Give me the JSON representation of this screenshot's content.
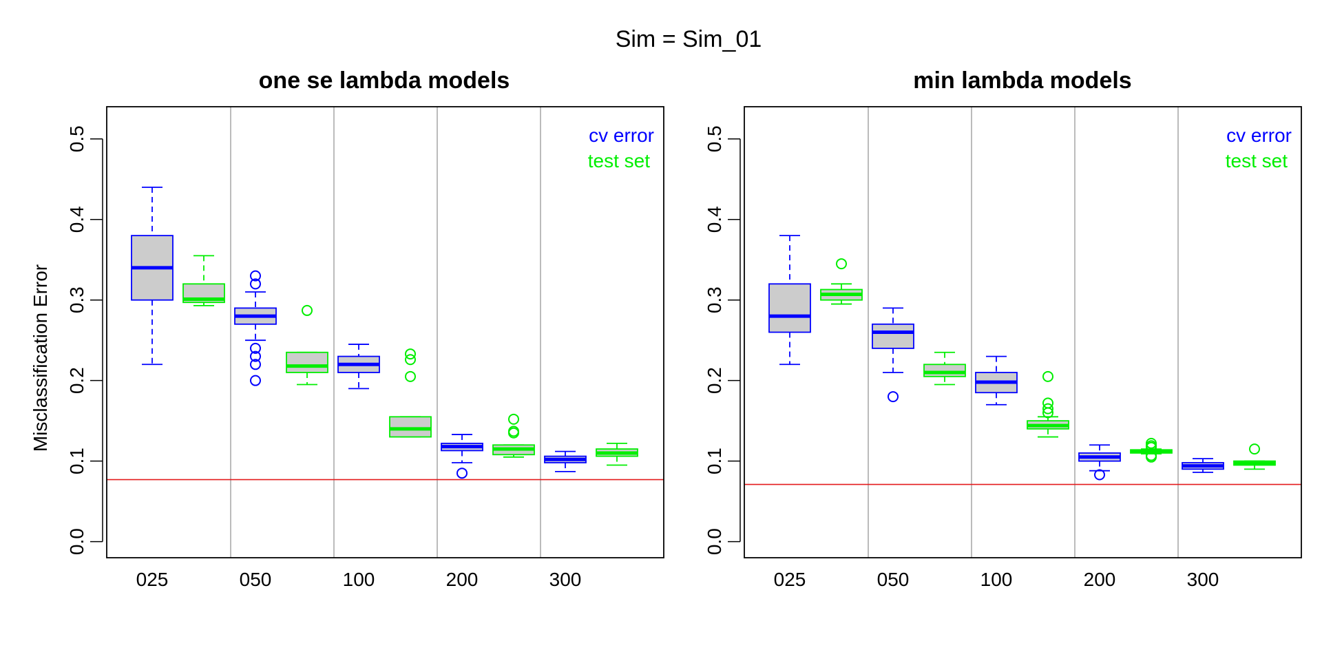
{
  "figure": {
    "title": "Sim = Sim_01"
  },
  "colors": {
    "cv": "#0000FF",
    "test": "#00EE00",
    "box_fill": "#CCCCCC",
    "reference": "#E41A1C",
    "separator": "#AAAAAA"
  },
  "chart_data": [
    {
      "type": "box",
      "title": "one se lambda models",
      "xlabel": "",
      "ylabel": "Misclassification Error",
      "ylim": [
        0.0,
        0.5
      ],
      "yticks": [
        0.0,
        0.1,
        0.2,
        0.3,
        0.4,
        0.5
      ],
      "categories": [
        "025",
        "050",
        "100",
        "200",
        "300"
      ],
      "legend": {
        "position": "top-right",
        "entries": [
          "cv error",
          "test set"
        ]
      },
      "reference_line": 0.077,
      "series": [
        {
          "name": "cv error",
          "color": "#0000FF",
          "boxes": [
            {
              "category": "025",
              "whisker_low": 0.22,
              "q1": 0.3,
              "median": 0.34,
              "q3": 0.38,
              "whisker_high": 0.44,
              "outliers": []
            },
            {
              "category": "050",
              "whisker_low": 0.25,
              "q1": 0.27,
              "median": 0.28,
              "q3": 0.29,
              "whisker_high": 0.31,
              "outliers": [
                0.33,
                0.32,
                0.24,
                0.23,
                0.22,
                0.2
              ]
            },
            {
              "category": "100",
              "whisker_low": 0.19,
              "q1": 0.21,
              "median": 0.22,
              "q3": 0.23,
              "whisker_high": 0.245,
              "outliers": []
            },
            {
              "category": "200",
              "whisker_low": 0.098,
              "q1": 0.113,
              "median": 0.118,
              "q3": 0.122,
              "whisker_high": 0.133,
              "outliers": [
                0.085
              ]
            },
            {
              "category": "300",
              "whisker_low": 0.087,
              "q1": 0.098,
              "median": 0.102,
              "q3": 0.106,
              "whisker_high": 0.112,
              "outliers": []
            }
          ]
        },
        {
          "name": "test set",
          "color": "#00EE00",
          "boxes": [
            {
              "category": "025",
              "whisker_low": 0.293,
              "q1": 0.297,
              "median": 0.301,
              "q3": 0.32,
              "whisker_high": 0.355,
              "outliers": []
            },
            {
              "category": "050",
              "whisker_low": 0.195,
              "q1": 0.21,
              "median": 0.218,
              "q3": 0.235,
              "whisker_high": 0.235,
              "outliers": [
                0.287
              ]
            },
            {
              "category": "100",
              "whisker_low": 0.13,
              "q1": 0.13,
              "median": 0.14,
              "q3": 0.155,
              "whisker_high": 0.155,
              "outliers": [
                0.233,
                0.226,
                0.205
              ]
            },
            {
              "category": "200",
              "whisker_low": 0.105,
              "q1": 0.108,
              "median": 0.115,
              "q3": 0.12,
              "whisker_high": 0.12,
              "outliers": [
                0.152,
                0.137,
                0.135
              ]
            },
            {
              "category": "300",
              "whisker_low": 0.095,
              "q1": 0.106,
              "median": 0.11,
              "q3": 0.115,
              "whisker_high": 0.122,
              "outliers": []
            }
          ]
        }
      ]
    },
    {
      "type": "box",
      "title": "min lambda models",
      "xlabel": "",
      "ylabel": "",
      "ylim": [
        0.0,
        0.5
      ],
      "yticks": [
        0.0,
        0.1,
        0.2,
        0.3,
        0.4,
        0.5
      ],
      "categories": [
        "025",
        "050",
        "100",
        "200",
        "300"
      ],
      "legend": {
        "position": "top-right",
        "entries": [
          "cv error",
          "test set"
        ]
      },
      "reference_line": 0.071,
      "series": [
        {
          "name": "cv error",
          "color": "#0000FF",
          "boxes": [
            {
              "category": "025",
              "whisker_low": 0.22,
              "q1": 0.26,
              "median": 0.28,
              "q3": 0.32,
              "whisker_high": 0.38,
              "outliers": []
            },
            {
              "category": "050",
              "whisker_low": 0.21,
              "q1": 0.24,
              "median": 0.26,
              "q3": 0.27,
              "whisker_high": 0.29,
              "outliers": [
                0.18
              ]
            },
            {
              "category": "100",
              "whisker_low": 0.17,
              "q1": 0.185,
              "median": 0.198,
              "q3": 0.21,
              "whisker_high": 0.23,
              "outliers": []
            },
            {
              "category": "200",
              "whisker_low": 0.088,
              "q1": 0.1,
              "median": 0.105,
              "q3": 0.11,
              "whisker_high": 0.12,
              "outliers": [
                0.083
              ]
            },
            {
              "category": "300",
              "whisker_low": 0.086,
              "q1": 0.09,
              "median": 0.094,
              "q3": 0.098,
              "whisker_high": 0.103,
              "outliers": []
            }
          ]
        },
        {
          "name": "test set",
          "color": "#00EE00",
          "boxes": [
            {
              "category": "025",
              "whisker_low": 0.295,
              "q1": 0.3,
              "median": 0.307,
              "q3": 0.313,
              "whisker_high": 0.32,
              "outliers": [
                0.345
              ]
            },
            {
              "category": "050",
              "whisker_low": 0.195,
              "q1": 0.205,
              "median": 0.21,
              "q3": 0.22,
              "whisker_high": 0.235,
              "outliers": []
            },
            {
              "category": "100",
              "whisker_low": 0.13,
              "q1": 0.14,
              "median": 0.144,
              "q3": 0.15,
              "whisker_high": 0.155,
              "outliers": [
                0.205,
                0.172,
                0.165,
                0.16
              ]
            },
            {
              "category": "200",
              "whisker_low": 0.109,
              "q1": 0.11,
              "median": 0.112,
              "q3": 0.114,
              "whisker_high": 0.115,
              "outliers": [
                0.122,
                0.119,
                0.117,
                0.107,
                0.105
              ]
            },
            {
              "category": "300",
              "whisker_low": 0.09,
              "q1": 0.095,
              "median": 0.097,
              "q3": 0.1,
              "whisker_high": 0.1,
              "outliers": [
                0.115
              ]
            }
          ]
        }
      ]
    }
  ]
}
